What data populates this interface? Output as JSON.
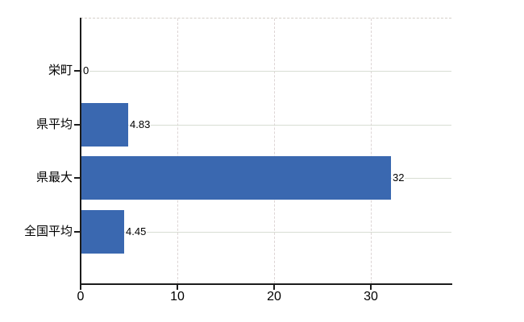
{
  "chart_data": {
    "type": "bar",
    "orientation": "horizontal",
    "title": "",
    "categories": [
      "栄町",
      "県平均",
      "県最大",
      "全国平均"
    ],
    "values": [
      0,
      4.83,
      32,
      4.45
    ],
    "value_labels": [
      "0",
      "4.83",
      "32",
      "4.45"
    ],
    "x_ticks": [
      0,
      10,
      20,
      30
    ],
    "x_tick_labels": [
      "0",
      "10",
      "20",
      "30"
    ],
    "xlim": [
      0,
      38.3
    ],
    "ylabel": "",
    "xlabel": "",
    "grid": true,
    "legend": "none",
    "colors": {
      "bar": "#3a68b0",
      "axis": "#1c1c1c",
      "h_grid": "#d8ddd3",
      "v_grid": "#ddd5d5",
      "top_border": "#d4cfc9",
      "text": "#000000",
      "background": "#ffffff"
    }
  }
}
